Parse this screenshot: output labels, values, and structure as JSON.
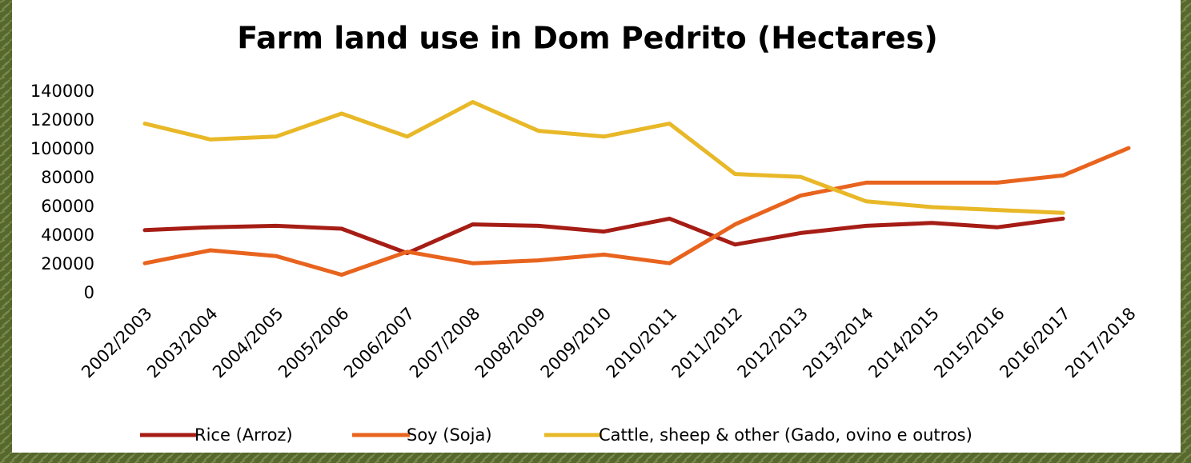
{
  "chart_data": {
    "type": "line",
    "title": "Farm land use in Dom Pedrito (Hectares)",
    "categories": [
      "2002/2003",
      "2003/2004",
      "2004/2005",
      "2005/2006",
      "2006/2007",
      "2007/2008",
      "2008/2009",
      "2009/2010",
      "2010/2011",
      "2011/2012",
      "2012/2013",
      "2013/2014",
      "2014/2015",
      "2015/2016",
      "2016/2017",
      "2017/2018"
    ],
    "series": [
      {
        "name": "Rice (Arroz)",
        "color": "#a51d15",
        "values": [
          44000,
          46000,
          47000,
          45000,
          28000,
          48000,
          47000,
          43000,
          52000,
          34000,
          42000,
          47000,
          49000,
          46000,
          52000,
          null
        ]
      },
      {
        "name": "Soy (Soja)",
        "color": "#e8641e",
        "values": [
          21000,
          30000,
          26000,
          13000,
          29000,
          21000,
          23000,
          27000,
          21000,
          48000,
          68000,
          77000,
          77000,
          77000,
          82000,
          101000
        ]
      },
      {
        "name": "Cattle, sheep & other (Gado, ovino e outros)",
        "color": "#e8b828",
        "values": [
          118000,
          107000,
          109000,
          125000,
          109000,
          133000,
          113000,
          109000,
          118000,
          83000,
          81000,
          64000,
          60000,
          58000,
          56000,
          null
        ]
      }
    ],
    "ylim": [
      0,
      140000
    ],
    "yticks": [
      0,
      20000,
      40000,
      60000,
      80000,
      100000,
      120000,
      140000
    ],
    "grid": false,
    "legend": "bottom"
  }
}
